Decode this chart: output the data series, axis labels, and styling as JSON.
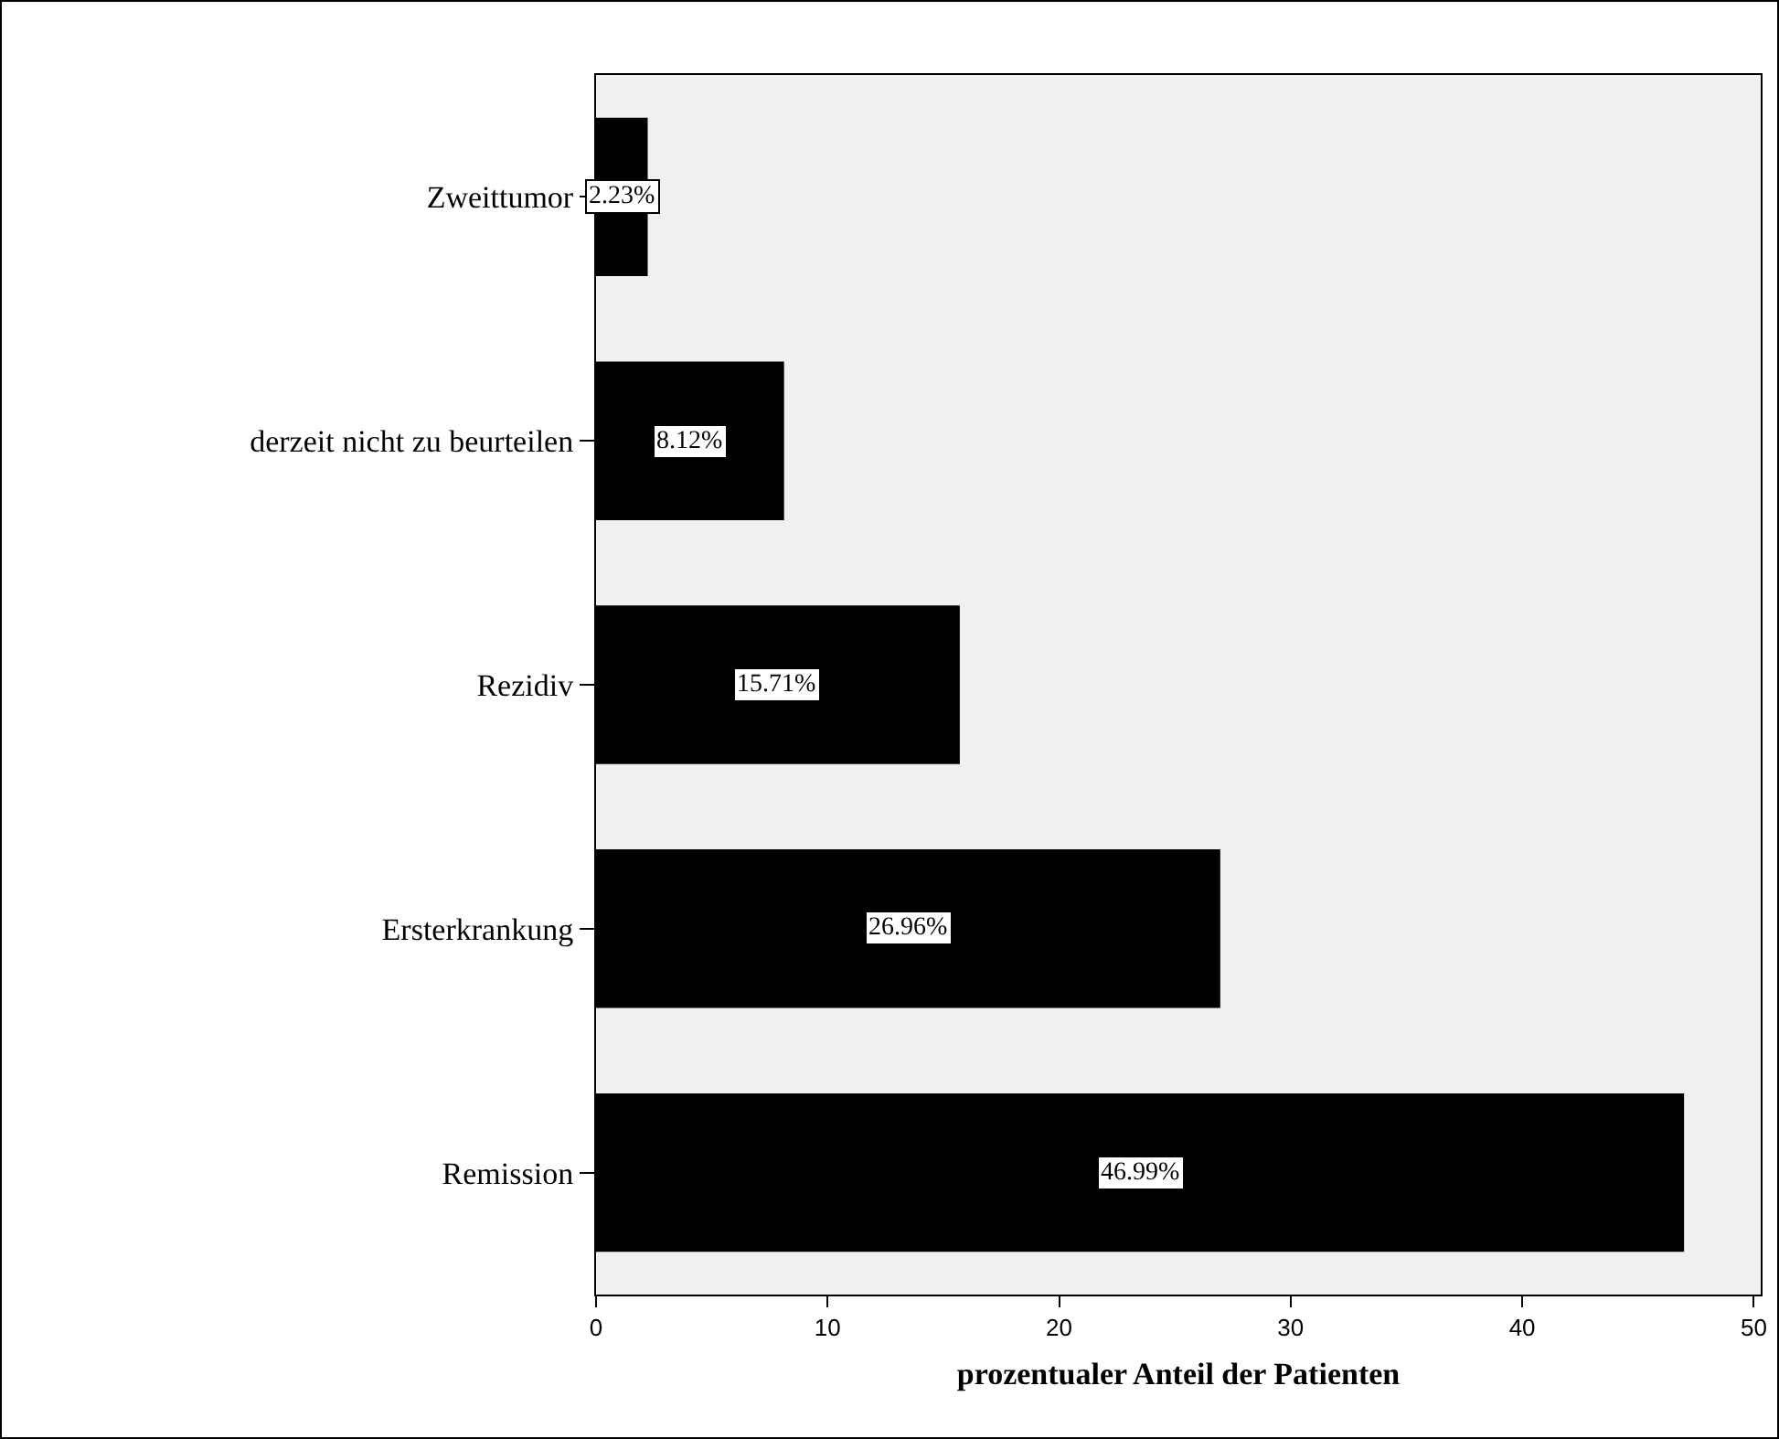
{
  "chart_data": {
    "type": "bar",
    "orientation": "horizontal",
    "xlabel": "prozentualer Anteil der Patienten",
    "categories": [
      "Zweittumor",
      "derzeit nicht zu beurteilen",
      "Rezidiv",
      "Ersterkrankung",
      "Remission"
    ],
    "values": [
      2.23,
      8.12,
      15.71,
      26.96,
      46.99
    ],
    "value_labels": [
      "2.23%",
      "8.12%",
      "15.71%",
      "26.96%",
      "46.99%"
    ],
    "color": "#000000",
    "xlim": [
      0,
      50.3
    ],
    "xticks": [
      0,
      10,
      20,
      30,
      40,
      50
    ],
    "grid": false
  }
}
